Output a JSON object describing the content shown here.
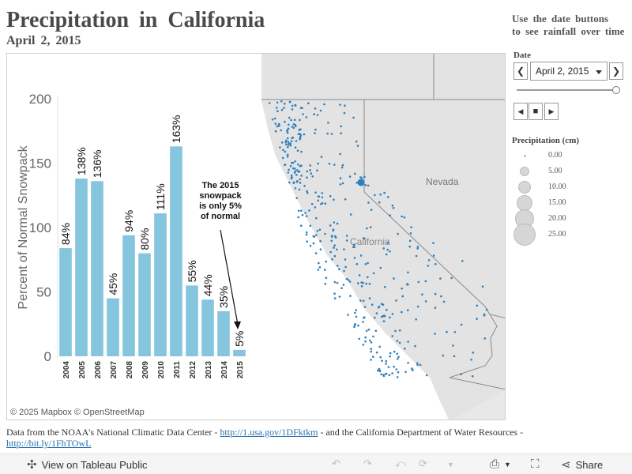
{
  "header": {
    "title": "Precipitation in California",
    "subtitle": "April 2, 2015",
    "hint_line1": "Use the date buttons",
    "hint_line2": "to see rainfall over time"
  },
  "map": {
    "labels": {
      "nevada": "Nevada",
      "california": "California"
    },
    "attribution": "© 2025 Mapbox © OpenStreetMap"
  },
  "controls": {
    "date_label": "Date",
    "selected_date": "April 2, 2015",
    "prev_glyph": "❮",
    "next_glyph": "❯",
    "play_back_glyph": "◀",
    "stop_glyph": "■",
    "play_glyph": "▶",
    "slider_fraction": 1.0
  },
  "legend": {
    "title": "Precipitation (cm)",
    "items": [
      {
        "label": "0.00",
        "size": 0
      },
      {
        "label": "5.00",
        "size": 5
      },
      {
        "label": "10.00",
        "size": 10
      },
      {
        "label": "15.00",
        "size": 15
      },
      {
        "label": "20.00",
        "size": 20
      },
      {
        "label": "25.00",
        "size": 25
      }
    ]
  },
  "chart_data": {
    "type": "bar",
    "categories": [
      "2004",
      "2005",
      "2006",
      "2007",
      "2008",
      "2009",
      "2010",
      "2011",
      "2012",
      "2013",
      "2014",
      "2015"
    ],
    "values": [
      84,
      138,
      136,
      45,
      94,
      80,
      111,
      163,
      55,
      44,
      35,
      5
    ],
    "data_labels": [
      "84%",
      "138%",
      "136%",
      "45%",
      "94%",
      "80%",
      "111%",
      "163%",
      "55%",
      "44%",
      "35%",
      "5%"
    ],
    "ylabel": "Percent of Normal Snowpack",
    "yticks": [
      0,
      50,
      100,
      150,
      200
    ],
    "ylim": [
      0,
      200
    ],
    "color": "#86c5de",
    "annotation": [
      "The 2015",
      "snowpack",
      "is only 5%",
      "of normal"
    ]
  },
  "footer": {
    "text_1": "Data from the NOAA's National Climatic Data Center - ",
    "link_1": "http://1.usa.gov/1DFktkm",
    "text_2": " - and the California Department of Water Resources - ",
    "link_2": "http://bit.ly/1FhTOwL"
  },
  "toolbar": {
    "view_label": "View on Tableau Public",
    "share_label": "Share"
  },
  "colors": {
    "land": "#e3e3e3",
    "dot": "#2e7fbd",
    "bar": "#86c5de"
  }
}
